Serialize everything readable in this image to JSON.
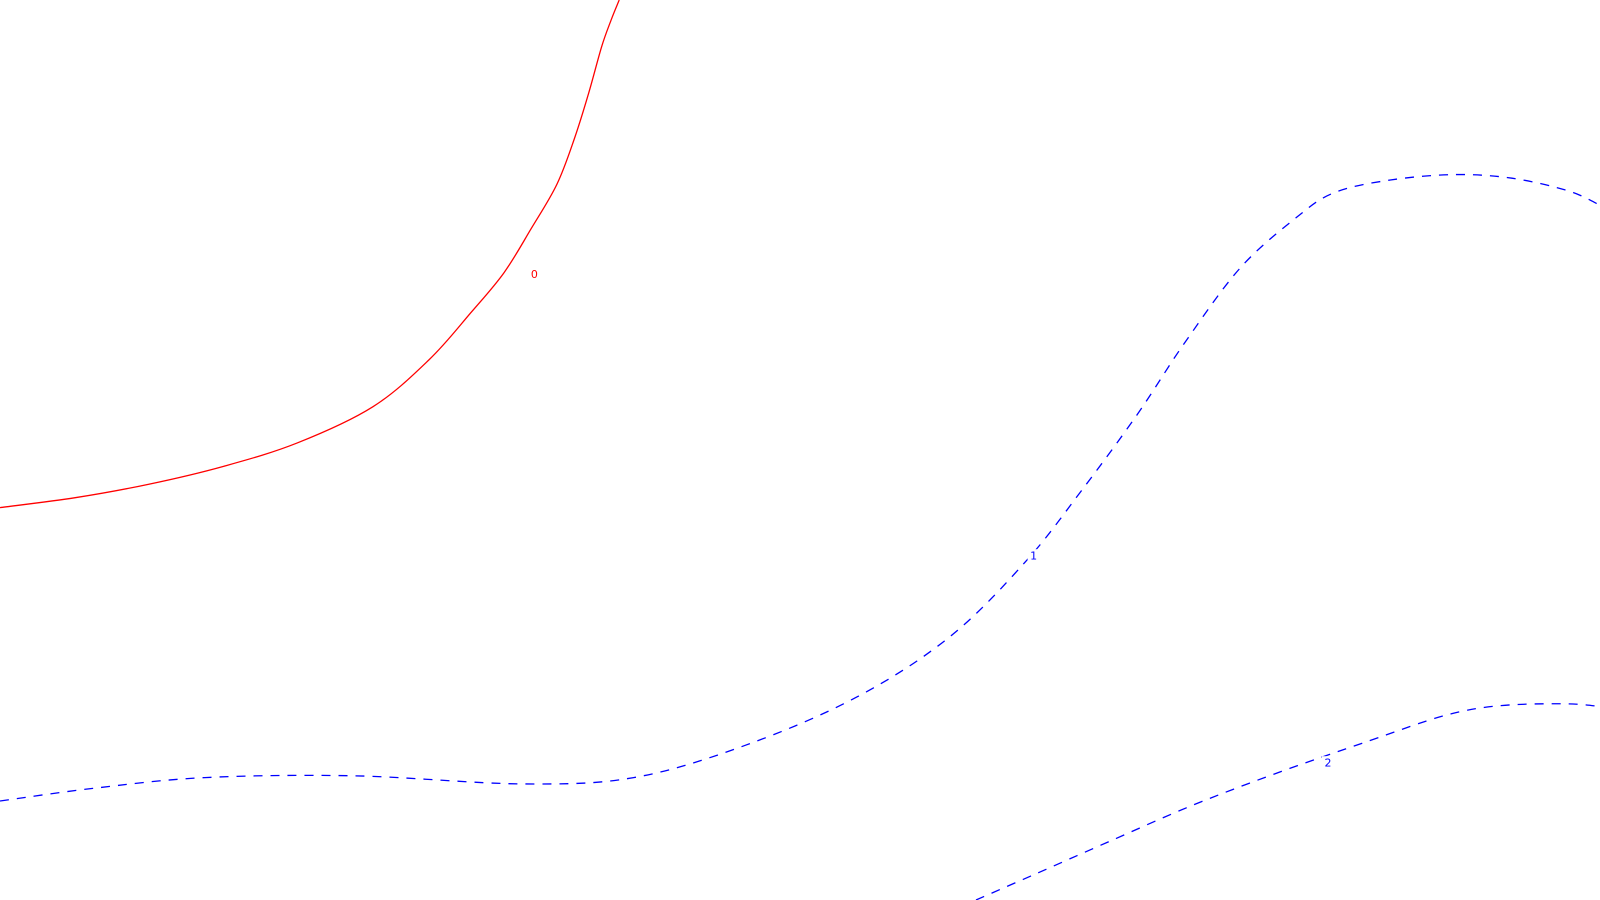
{
  "chart_data": {
    "type": "line",
    "title": "",
    "xlabel": "",
    "ylabel": "",
    "grid": false,
    "legend": "none",
    "contours": [
      {
        "level": "0",
        "label": "0",
        "color": "#ff0000",
        "style": "solid",
        "points": [
          [
            0.0,
            0.436
          ],
          [
            0.047,
            0.447
          ],
          [
            0.093,
            0.462
          ],
          [
            0.14,
            0.482
          ],
          [
            0.186,
            0.508
          ],
          [
            0.233,
            0.548
          ],
          [
            0.268,
            0.6
          ],
          [
            0.294,
            0.652
          ],
          [
            0.315,
            0.697
          ],
          [
            0.332,
            0.746
          ],
          [
            0.348,
            0.795
          ],
          [
            0.359,
            0.846
          ],
          [
            0.368,
            0.897
          ],
          [
            0.376,
            0.948
          ],
          [
            0.382,
            0.978
          ],
          [
            0.387,
            1.0
          ]
        ]
      },
      {
        "level": "1",
        "label": "1",
        "color": "#0000ff",
        "style": "dashed",
        "points": [
          [
            0.0,
            0.11
          ],
          [
            0.058,
            0.124
          ],
          [
            0.128,
            0.136
          ],
          [
            0.221,
            0.138
          ],
          [
            0.326,
            0.129
          ],
          [
            0.396,
            0.136
          ],
          [
            0.466,
            0.172
          ],
          [
            0.536,
            0.226
          ],
          [
            0.594,
            0.293
          ],
          [
            0.641,
            0.376
          ],
          [
            0.676,
            0.455
          ],
          [
            0.711,
            0.54
          ],
          [
            0.74,
            0.618
          ],
          [
            0.775,
            0.702
          ],
          [
            0.81,
            0.758
          ],
          [
            0.834,
            0.786
          ],
          [
            0.869,
            0.8
          ],
          [
            0.909,
            0.806
          ],
          [
            0.945,
            0.802
          ],
          [
            0.98,
            0.788
          ],
          [
            1.0,
            0.772
          ]
        ]
      },
      {
        "level": "2",
        "label": "2",
        "color": "#0000ff",
        "style": "dashed",
        "points": [
          [
            0.61,
            0.0
          ],
          [
            0.646,
            0.028
          ],
          [
            0.692,
            0.064
          ],
          [
            0.745,
            0.105
          ],
          [
            0.798,
            0.141
          ],
          [
            0.856,
            0.177
          ],
          [
            0.903,
            0.205
          ],
          [
            0.938,
            0.216
          ],
          [
            0.979,
            0.218
          ],
          [
            1.0,
            0.215
          ]
        ]
      }
    ],
    "contour_labels": [
      {
        "text": "0",
        "color": "#ff0000",
        "x": 0.334,
        "y": 0.695
      },
      {
        "text": "1",
        "color": "#0000ff",
        "x": 0.646,
        "y": 0.382
      },
      {
        "text": "2",
        "color": "#0000ff",
        "x": 0.83,
        "y": 0.152
      }
    ]
  }
}
